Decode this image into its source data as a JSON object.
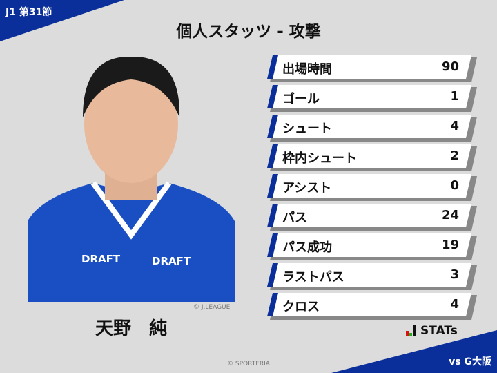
{
  "header": {
    "round": "J1 第31節",
    "title": "個人スタッツ - 攻撃",
    "opponent": "vs G大阪"
  },
  "player": {
    "name": "天野　純",
    "photo_credit": "© J.LEAGUE",
    "shirt_text": "DRAFT"
  },
  "stats": [
    {
      "label": "出場時間",
      "value": "90"
    },
    {
      "label": "ゴール",
      "value": "1"
    },
    {
      "label": "シュート",
      "value": "4"
    },
    {
      "label": "枠内シュート",
      "value": "2"
    },
    {
      "label": "アシスト",
      "value": "0"
    },
    {
      "label": "パス",
      "value": "24"
    },
    {
      "label": "パス成功",
      "value": "19"
    },
    {
      "label": "ラストパス",
      "value": "3"
    },
    {
      "label": "クロス",
      "value": "4"
    }
  ],
  "brand": {
    "logo_text": "STATs"
  },
  "footer": {
    "copyright": "© SPORTERIA"
  },
  "colors": {
    "accent": "#0a2f9a",
    "background": "#dcdcdc"
  }
}
